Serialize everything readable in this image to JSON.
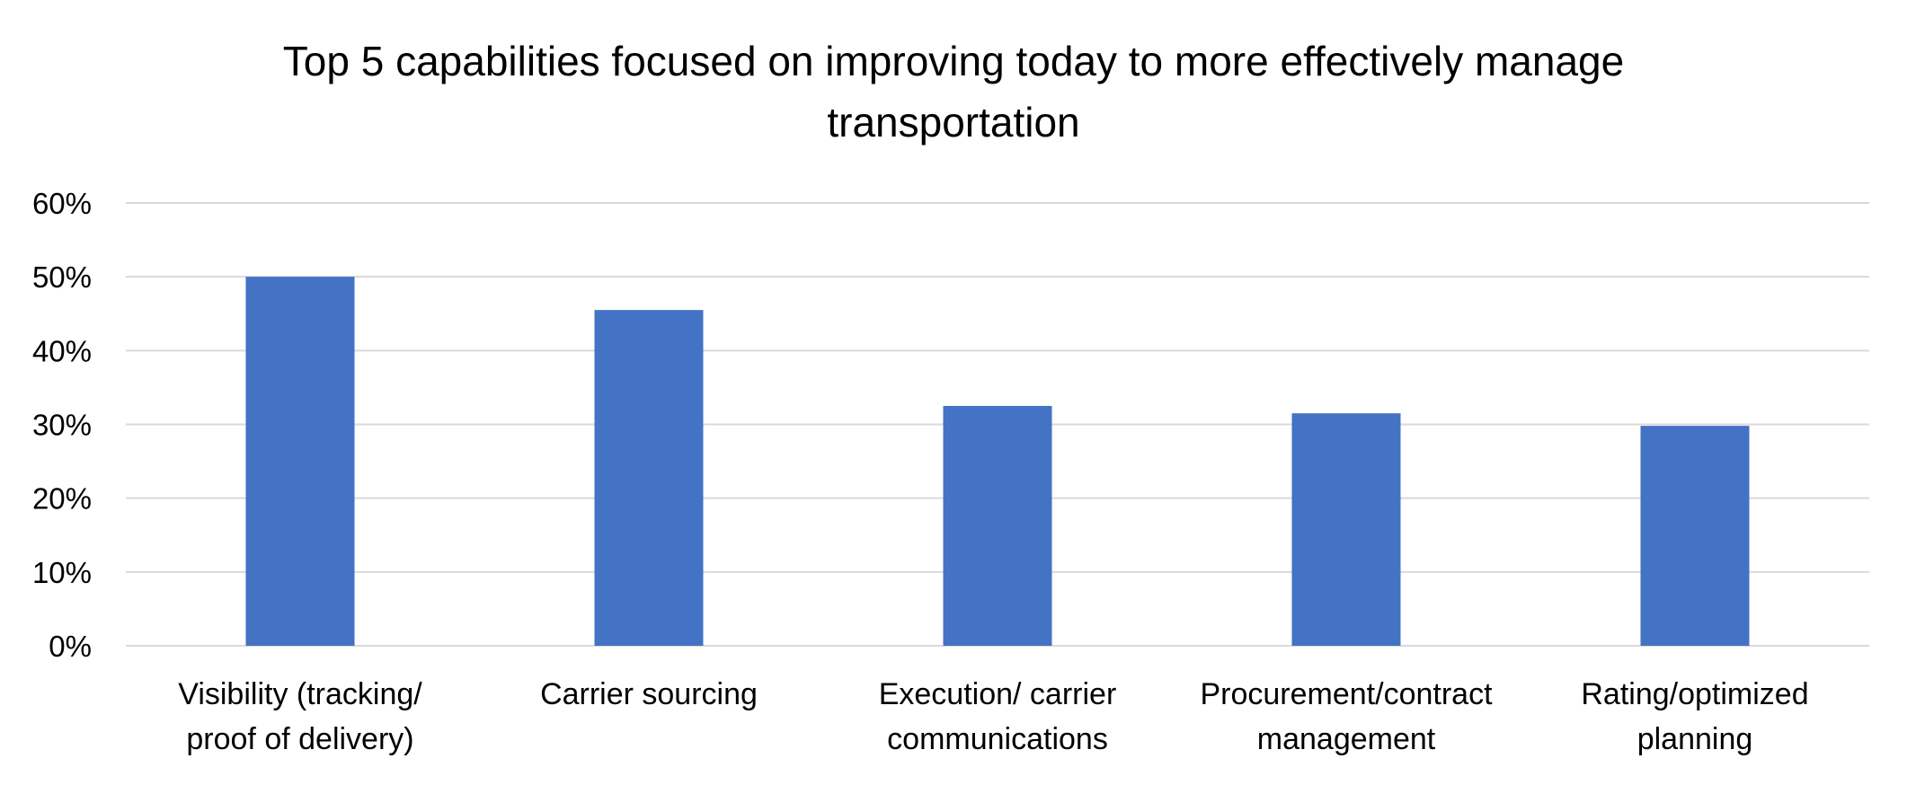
{
  "chart_data": {
    "type": "bar",
    "title_lines": [
      "Top 5 capabilities focused on improving today to more effectively manage",
      "transportation"
    ],
    "categories": [
      [
        "Visibility (tracking/",
        "proof of delivery)"
      ],
      [
        "Carrier sourcing"
      ],
      [
        "Execution/ carrier",
        "communications"
      ],
      [
        "Procurement/contract",
        "management"
      ],
      [
        "Rating/optimized",
        "planning"
      ]
    ],
    "values": [
      0.5,
      0.455,
      0.325,
      0.315,
      0.298
    ],
    "ylim": [
      0,
      0.6
    ],
    "yticks": [
      0,
      0.1,
      0.2,
      0.3,
      0.4,
      0.5,
      0.6
    ],
    "ytick_labels": [
      "0%",
      "10%",
      "20%",
      "30%",
      "40%",
      "50%",
      "60%"
    ],
    "grid": true,
    "legend": "none",
    "bar_color": "#4472C4",
    "grid_color": "#d9d9d9"
  }
}
